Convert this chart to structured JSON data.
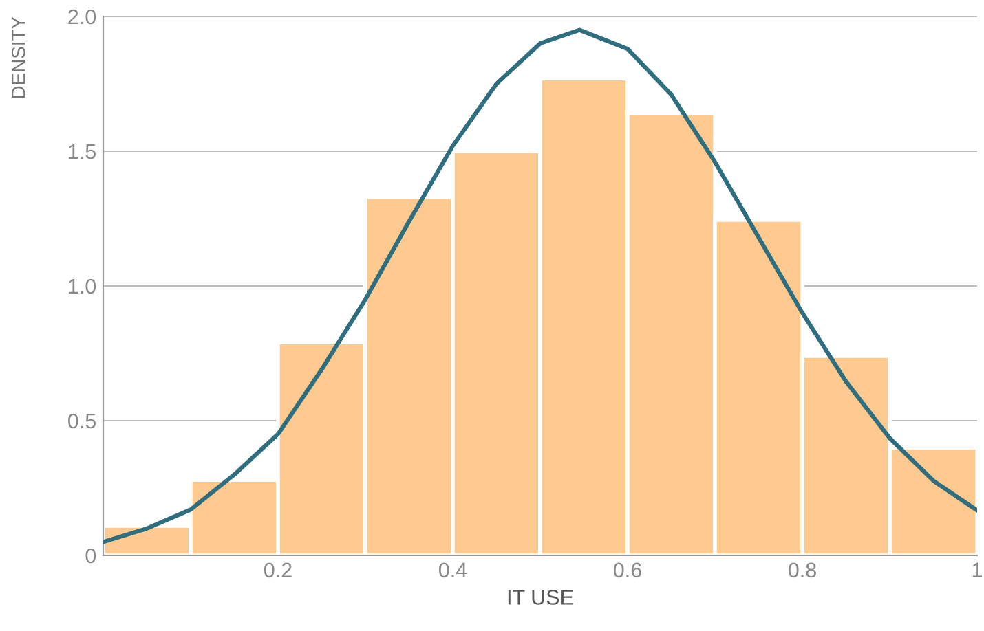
{
  "chart_data": {
    "type": "histogram",
    "xlabel": "IT USE",
    "ylabel": "DENSITY",
    "bins": [
      0,
      0.1,
      0.2,
      0.3,
      0.4,
      0.5,
      0.6,
      0.7,
      0.8,
      0.9,
      1.0
    ],
    "values": [
      0.11,
      0.28,
      0.79,
      1.33,
      1.5,
      1.77,
      1.64,
      1.245,
      0.74,
      0.4
    ],
    "color": "#fdc98e",
    "series": [
      {
        "type": "line",
        "color": "#2e6e7e",
        "x": [
          0,
          0.05,
          0.1,
          0.15,
          0.2,
          0.25,
          0.3,
          0.35,
          0.4,
          0.45,
          0.5,
          0.545,
          0.6,
          0.65,
          0.7,
          0.75,
          0.8,
          0.85,
          0.9,
          0.95,
          1.0
        ],
        "values": [
          0.05,
          0.1,
          0.17,
          0.3,
          0.45,
          0.69,
          0.95,
          1.24,
          1.52,
          1.75,
          1.9,
          1.95,
          1.88,
          1.71,
          1.46,
          1.18,
          0.9,
          0.645,
          0.435,
          0.277,
          0.167
        ]
      }
    ],
    "xlim": [
      0,
      1
    ],
    "ylim": [
      0,
      2.0
    ],
    "xticks": [
      0.2,
      0.4,
      0.6,
      0.8,
      1
    ],
    "yticks": [
      0,
      0.5,
      {
        "value": 1.0,
        "label": "1.0"
      },
      1.5,
      {
        "value": 2.0,
        "label": "2.0"
      }
    ],
    "grid": "y",
    "legend": false
  }
}
